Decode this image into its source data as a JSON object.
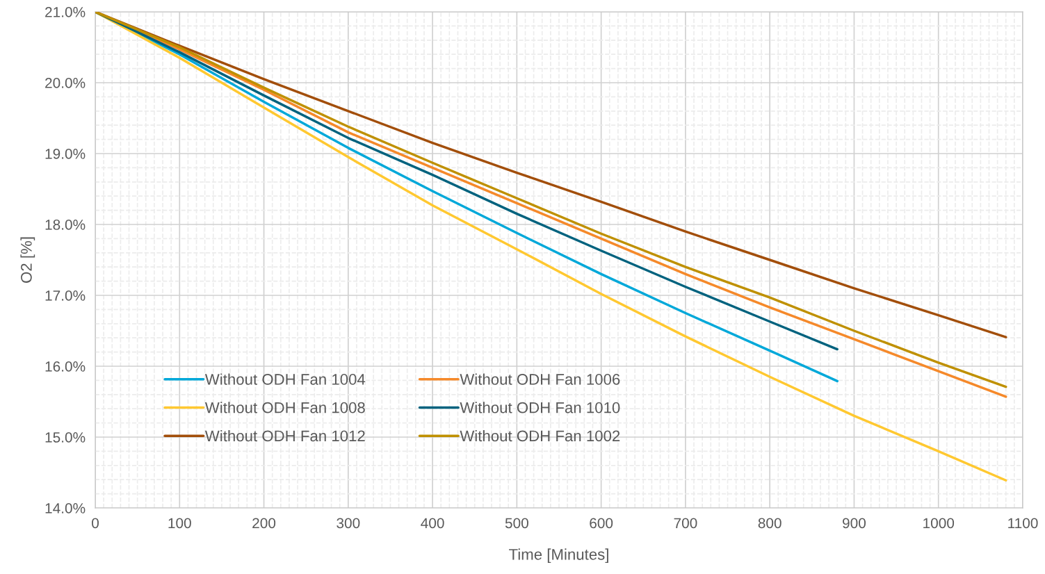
{
  "chart_data": {
    "type": "line",
    "xlabel": "Time [Minutes]",
    "ylabel": "O2 [%]",
    "x": [
      0,
      100,
      200,
      300,
      400,
      500,
      600,
      700,
      800,
      900,
      1000,
      1080
    ],
    "series": [
      {
        "name": "Without ODH Fan 1004",
        "color": "#00a8d9",
        "x": [
          0,
          100,
          200,
          300,
          400,
          500,
          600,
          700,
          800,
          880
        ],
        "values": [
          21.0,
          20.4,
          19.73,
          19.08,
          18.47,
          17.88,
          17.3,
          16.75,
          16.22,
          15.79
        ]
      },
      {
        "name": "Without ODH Fan 1006",
        "color": "#f5892a",
        "values": [
          21.0,
          20.47,
          19.9,
          19.3,
          18.8,
          18.3,
          17.8,
          17.3,
          16.83,
          16.38,
          15.93,
          15.57
        ]
      },
      {
        "name": "Without ODH Fan 1008",
        "color": "#ffc830",
        "values": [
          21.0,
          20.35,
          19.65,
          18.95,
          18.27,
          17.65,
          17.02,
          16.42,
          15.85,
          15.3,
          14.8,
          14.39
        ]
      },
      {
        "name": "Without ODH Fan 1010",
        "color": "#00627e",
        "x": [
          0,
          100,
          200,
          300,
          400,
          500,
          600,
          700,
          800,
          880
        ],
        "values": [
          21.0,
          20.43,
          19.82,
          19.22,
          18.7,
          18.15,
          17.63,
          17.12,
          16.63,
          16.24
        ]
      },
      {
        "name": "Without ODH Fan 1012",
        "color": "#a24e0a",
        "values": [
          21.0,
          20.52,
          20.05,
          19.6,
          19.15,
          18.73,
          18.32,
          17.9,
          17.5,
          17.1,
          16.72,
          16.41
        ]
      },
      {
        "name": "Without ODH Fan 1002",
        "color": "#bf9000",
        "values": [
          21.0,
          20.5,
          19.93,
          19.38,
          18.87,
          18.37,
          17.87,
          17.4,
          16.97,
          16.5,
          16.05,
          15.71
        ]
      }
    ],
    "xlim": [
      0,
      1100
    ],
    "xticks": [
      0,
      100,
      200,
      300,
      400,
      500,
      600,
      700,
      800,
      900,
      1000,
      1100
    ],
    "ylim": [
      14,
      21
    ],
    "yticks": [
      {
        "value": 14,
        "label": "14.0%"
      },
      {
        "value": 15,
        "label": "15.0%"
      },
      {
        "value": 16,
        "label": "16.0%"
      },
      {
        "value": 17,
        "label": "17.0%"
      },
      {
        "value": 18,
        "label": "18.0%"
      },
      {
        "value": 19,
        "label": "19.0%"
      },
      {
        "value": 20,
        "label": "20.0%"
      },
      {
        "value": 21,
        "label": "21.0%"
      }
    ],
    "grid": true,
    "legend": "bottom left",
    "marker": "none",
    "line_style": "solid"
  }
}
